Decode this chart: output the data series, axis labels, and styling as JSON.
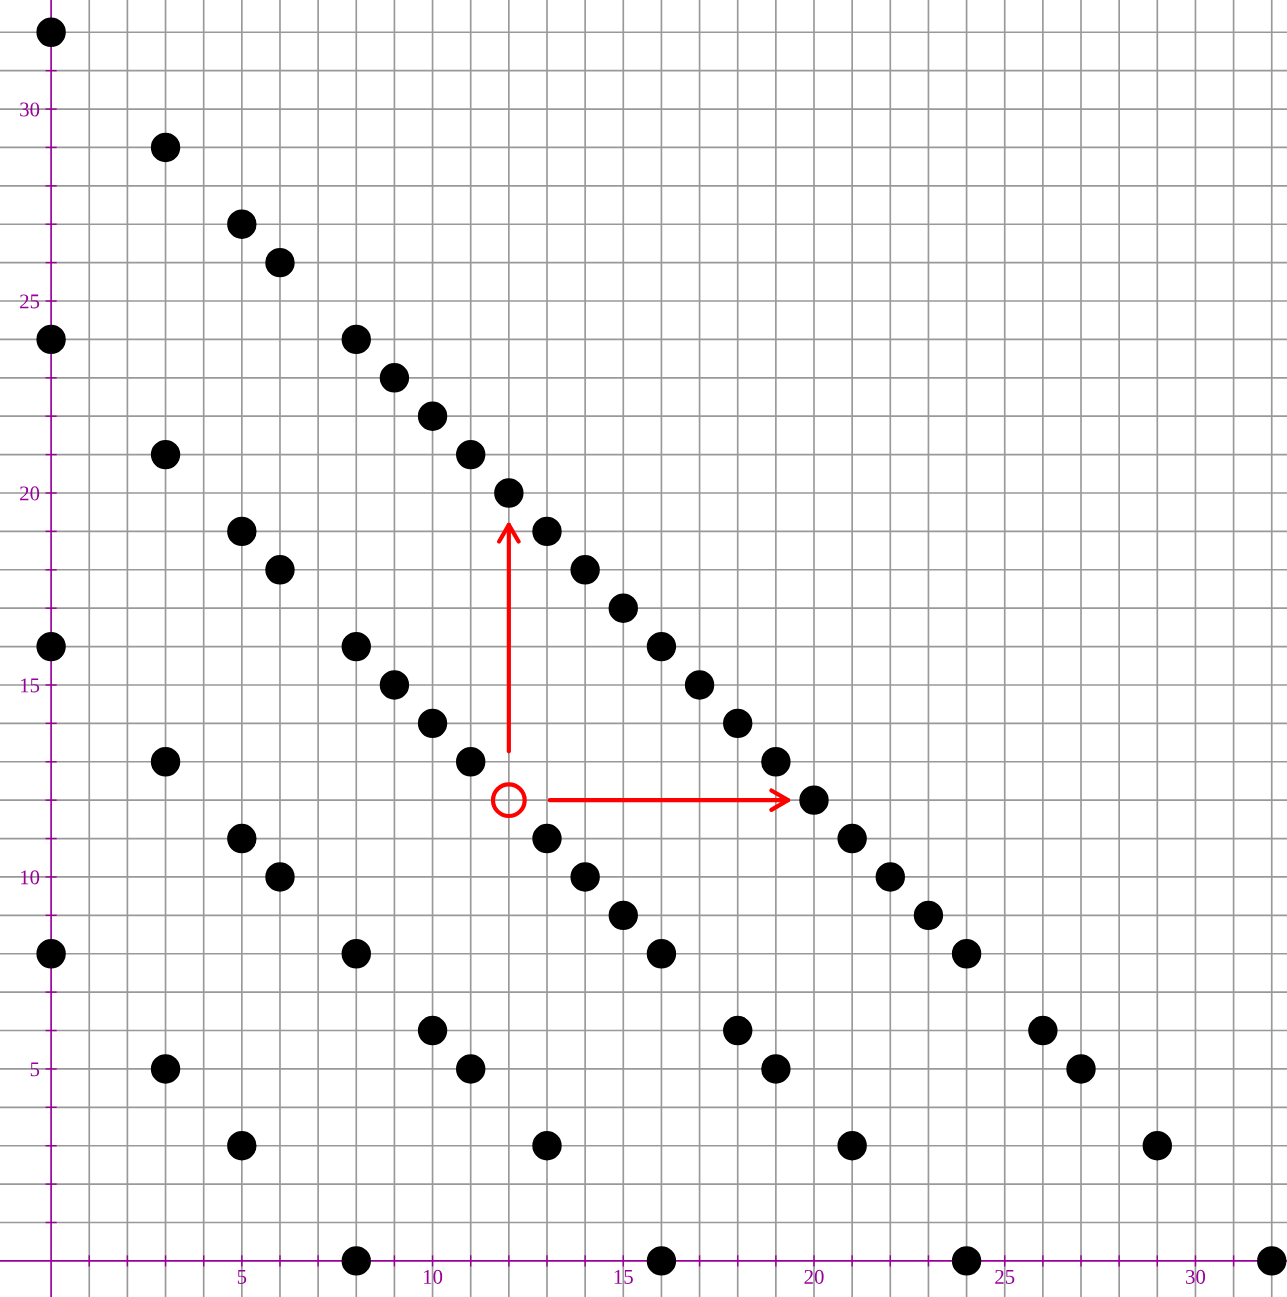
{
  "chart_data": {
    "type": "scatter",
    "series": [
      {
        "color": "#000000",
        "x": [
          0,
          3,
          5,
          6,
          8,
          9,
          10,
          11,
          12,
          13,
          14,
          15,
          16,
          17,
          18,
          19,
          20,
          21,
          22,
          23,
          24,
          26,
          27,
          29,
          32,
          0,
          3,
          5,
          6,
          8,
          9,
          10,
          11,
          13,
          14,
          15,
          16,
          18,
          19,
          21,
          24,
          0,
          3,
          5,
          6,
          8,
          10,
          11,
          13,
          16,
          0,
          3,
          5,
          8
        ],
        "values": [
          32,
          29,
          27,
          26,
          24,
          23,
          22,
          21,
          20,
          19,
          18,
          17,
          16,
          15,
          14,
          13,
          12,
          11,
          10,
          9,
          8,
          6,
          5,
          3,
          0,
          24,
          21,
          19,
          18,
          16,
          15,
          14,
          13,
          11,
          10,
          9,
          8,
          6,
          5,
          3,
          0,
          16,
          13,
          11,
          10,
          8,
          6,
          5,
          3,
          0,
          8,
          5,
          3,
          0
        ]
      },
      {
        "color": "#ff0000",
        "x": [
          12
        ],
        "values": [
          12
        ]
      }
    ],
    "marker": "circle",
    "xlim": [
      -1.34,
      32.4
    ],
    "ylim": [
      -0.94,
      32.84
    ],
    "xticks": [
      {
        "value": 1,
        "label": null
      },
      {
        "value": 2,
        "label": null
      },
      {
        "value": 3,
        "label": null
      },
      {
        "value": 4,
        "label": null
      },
      5,
      {
        "value": 6,
        "label": null
      },
      {
        "value": 7,
        "label": null
      },
      {
        "value": 8,
        "label": null
      },
      {
        "value": 9,
        "label": null
      },
      10,
      {
        "value": 11,
        "label": null
      },
      {
        "value": 12,
        "label": null
      },
      {
        "value": 13,
        "label": null
      },
      {
        "value": 14,
        "label": null
      },
      15,
      {
        "value": 16,
        "label": null
      },
      {
        "value": 17,
        "label": null
      },
      {
        "value": 18,
        "label": null
      },
      {
        "value": 19,
        "label": null
      },
      20,
      {
        "value": 21,
        "label": null
      },
      {
        "value": 22,
        "label": null
      },
      {
        "value": 23,
        "label": null
      },
      {
        "value": 24,
        "label": null
      },
      25,
      {
        "value": 26,
        "label": null
      },
      {
        "value": 27,
        "label": null
      },
      {
        "value": 28,
        "label": null
      },
      {
        "value": 29,
        "label": null
      },
      30,
      {
        "value": 31,
        "label": null
      },
      {
        "value": 32,
        "label": null
      }
    ],
    "yticks": [
      {
        "value": 1,
        "label": null
      },
      {
        "value": 2,
        "label": null
      },
      {
        "value": 3,
        "label": null
      },
      {
        "value": 4,
        "label": null
      },
      5,
      {
        "value": 6,
        "label": null
      },
      {
        "value": 7,
        "label": null
      },
      {
        "value": 8,
        "label": null
      },
      {
        "value": 9,
        "label": null
      },
      10,
      {
        "value": 11,
        "label": null
      },
      {
        "value": 12,
        "label": null
      },
      {
        "value": 13,
        "label": null
      },
      {
        "value": 14,
        "label": null
      },
      15,
      {
        "value": 16,
        "label": null
      },
      {
        "value": 17,
        "label": null
      },
      {
        "value": 18,
        "label": null
      },
      {
        "value": 19,
        "label": null
      },
      20,
      {
        "value": 21,
        "label": null
      },
      {
        "value": 22,
        "label": null
      },
      {
        "value": 23,
        "label": null
      },
      {
        "value": 24,
        "label": null
      },
      25,
      {
        "value": 26,
        "label": null
      },
      {
        "value": 27,
        "label": null
      },
      {
        "value": 28,
        "label": null
      },
      {
        "value": 29,
        "label": null
      },
      30,
      {
        "value": 31,
        "label": null
      },
      {
        "value": 32,
        "label": null
      }
    ],
    "grid": true,
    "legend": false
  }
}
